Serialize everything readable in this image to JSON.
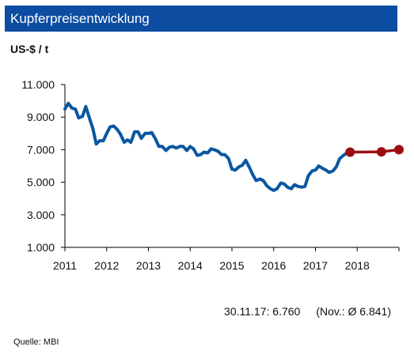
{
  "header": {
    "title": "Kupferpreisentwicklung"
  },
  "unit": "US-$ / t",
  "summary": {
    "current": "30.11.17: 6.760",
    "average": "(Nov.: Ø  6.841)"
  },
  "source": "Quelle: MBI",
  "colors": {
    "title_bar": "#0c4da2",
    "history": "#0a57a1",
    "forecast": "#9b0f12",
    "axis": "#000000"
  },
  "chart_data": {
    "type": "line",
    "title": "Kupferpreisentwicklung",
    "ylabel": "US-$ / t",
    "xlabel": "",
    "xlim": [
      2011,
      2019
    ],
    "ylim": [
      1000,
      11000
    ],
    "x_tick_labels": [
      "2011",
      "2012",
      "2013",
      "2014",
      "2015",
      "2016",
      "2017",
      "2018"
    ],
    "y_tick_labels": [
      "1.000",
      "3.000",
      "5.000",
      "7.000",
      "9.000",
      "11.000"
    ],
    "y_ticks": [
      1000,
      3000,
      5000,
      7000,
      9000,
      11000
    ],
    "x_ticks": [
      2011,
      2012,
      2013,
      2014,
      2015,
      2016,
      2017,
      2018
    ],
    "grid": false,
    "series": [
      {
        "type": "line",
        "x": [
          2011.0,
          2011.08,
          2011.17,
          2011.25,
          2011.33,
          2011.42,
          2011.5,
          2011.58,
          2011.67,
          2011.75,
          2011.83,
          2011.92,
          2012.0,
          2012.08,
          2012.17,
          2012.25,
          2012.33,
          2012.42,
          2012.5,
          2012.58,
          2012.67,
          2012.75,
          2012.83,
          2012.92,
          2013.0,
          2013.08,
          2013.17,
          2013.25,
          2013.33,
          2013.42,
          2013.5,
          2013.58,
          2013.67,
          2013.75,
          2013.83,
          2013.92,
          2014.0,
          2014.08,
          2014.17,
          2014.25,
          2014.33,
          2014.42,
          2014.5,
          2014.58,
          2014.67,
          2014.75,
          2014.83,
          2014.92,
          2015.0,
          2015.08,
          2015.17,
          2015.25,
          2015.33,
          2015.42,
          2015.5,
          2015.58,
          2015.67,
          2015.75,
          2015.83,
          2015.92,
          2016.0,
          2016.08,
          2016.17,
          2016.25,
          2016.33,
          2016.42,
          2016.5,
          2016.58,
          2016.67,
          2016.75,
          2016.83,
          2016.92,
          2017.0,
          2017.08,
          2017.17,
          2017.25,
          2017.33,
          2017.42,
          2017.5,
          2017.58,
          2017.67,
          2017.75,
          2017.83
        ],
        "values": [
          9500,
          9850,
          9550,
          9500,
          8950,
          9050,
          9650,
          9000,
          8300,
          7350,
          7550,
          7550,
          8000,
          8400,
          8450,
          8250,
          7950,
          7450,
          7600,
          7450,
          8100,
          8100,
          7700,
          8000,
          8000,
          8050,
          7650,
          7200,
          7200,
          6950,
          7150,
          7200,
          7100,
          7200,
          7200,
          6950,
          7200,
          7050,
          6650,
          6700,
          6850,
          6800,
          7050,
          7000,
          6900,
          6700,
          6700,
          6450,
          5800,
          5750,
          5950,
          6050,
          6350,
          5900,
          5450,
          5100,
          5200,
          5100,
          4800,
          4600,
          4500,
          4600,
          4950,
          4900,
          4700,
          4600,
          4850,
          4750,
          4700,
          4750,
          5400,
          5700,
          5750,
          6000,
          5850,
          5750,
          5600,
          5700,
          5950,
          6450,
          6650,
          6800,
          6850
        ]
      },
      {
        "type": "line-markers",
        "x": [
          2017.83,
          2018.58,
          2019.0
        ],
        "values": [
          6850,
          6870,
          7000
        ]
      }
    ]
  }
}
